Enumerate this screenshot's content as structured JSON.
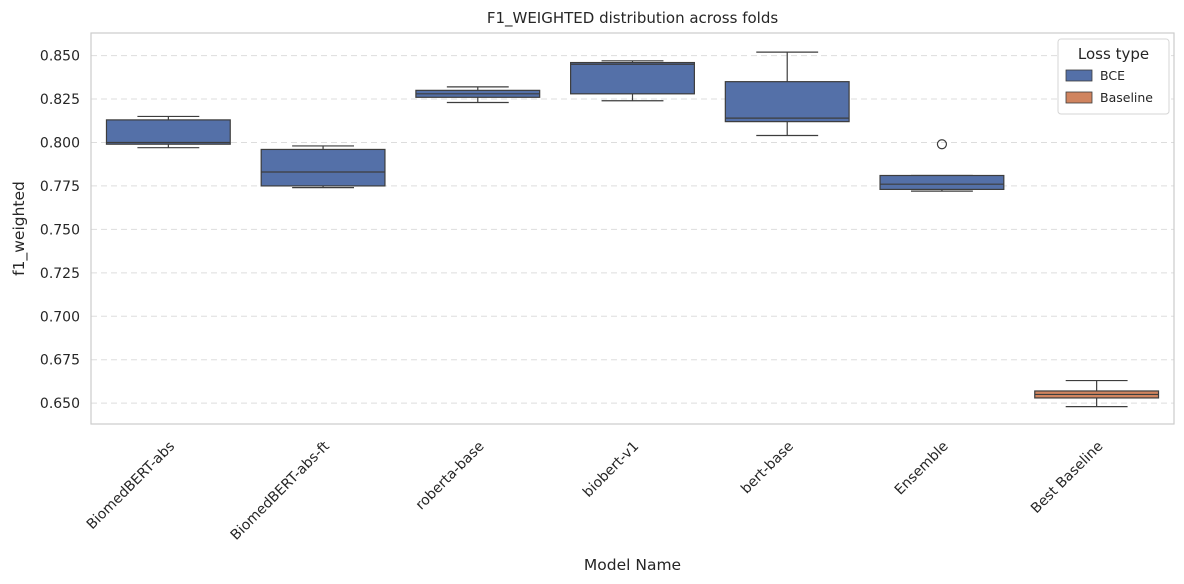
{
  "chart_data": {
    "type": "box",
    "title": "F1_WEIGHTED distribution across folds",
    "xlabel": "Model Name",
    "ylabel": "f1_weighted",
    "ylim": [
      0.638,
      0.863
    ],
    "yticks": [
      "0.650",
      "0.675",
      "0.700",
      "0.725",
      "0.750",
      "0.775",
      "0.800",
      "0.825",
      "0.850"
    ],
    "grid": "horizontal dashed",
    "legend": {
      "title": "Loss type",
      "position": "top-right",
      "entries": [
        {
          "label": "BCE",
          "color": "#5470a8"
        },
        {
          "label": "Baseline",
          "color": "#d0845f"
        }
      ]
    },
    "categories": [
      "BiomedBERT-abs",
      "BiomedBERT-abs-ft",
      "roberta-base",
      "biobert-v1",
      "bert-base",
      "Ensemble",
      "Best Baseline"
    ],
    "boxes": [
      {
        "category": "BiomedBERT-abs",
        "group": "BCE",
        "min": 0.797,
        "q1": 0.799,
        "median": 0.8,
        "q3": 0.813,
        "max": 0.815,
        "outliers": []
      },
      {
        "category": "BiomedBERT-abs-ft",
        "group": "BCE",
        "min": 0.774,
        "q1": 0.775,
        "median": 0.783,
        "q3": 0.796,
        "max": 0.798,
        "outliers": []
      },
      {
        "category": "roberta-base",
        "group": "BCE",
        "min": 0.823,
        "q1": 0.826,
        "median": 0.828,
        "q3": 0.83,
        "max": 0.832,
        "outliers": []
      },
      {
        "category": "biobert-v1",
        "group": "BCE",
        "min": 0.824,
        "q1": 0.828,
        "median": 0.845,
        "q3": 0.846,
        "max": 0.847,
        "outliers": []
      },
      {
        "category": "bert-base",
        "group": "BCE",
        "min": 0.804,
        "q1": 0.812,
        "median": 0.814,
        "q3": 0.835,
        "max": 0.852,
        "outliers": []
      },
      {
        "category": "Ensemble",
        "group": "BCE",
        "min": 0.772,
        "q1": 0.773,
        "median": 0.776,
        "q3": 0.781,
        "max": 0.781,
        "outliers": [
          0.799
        ]
      },
      {
        "category": "Best Baseline",
        "group": "Baseline",
        "min": 0.648,
        "q1": 0.653,
        "median": 0.655,
        "q3": 0.657,
        "max": 0.663,
        "outliers": []
      }
    ]
  }
}
